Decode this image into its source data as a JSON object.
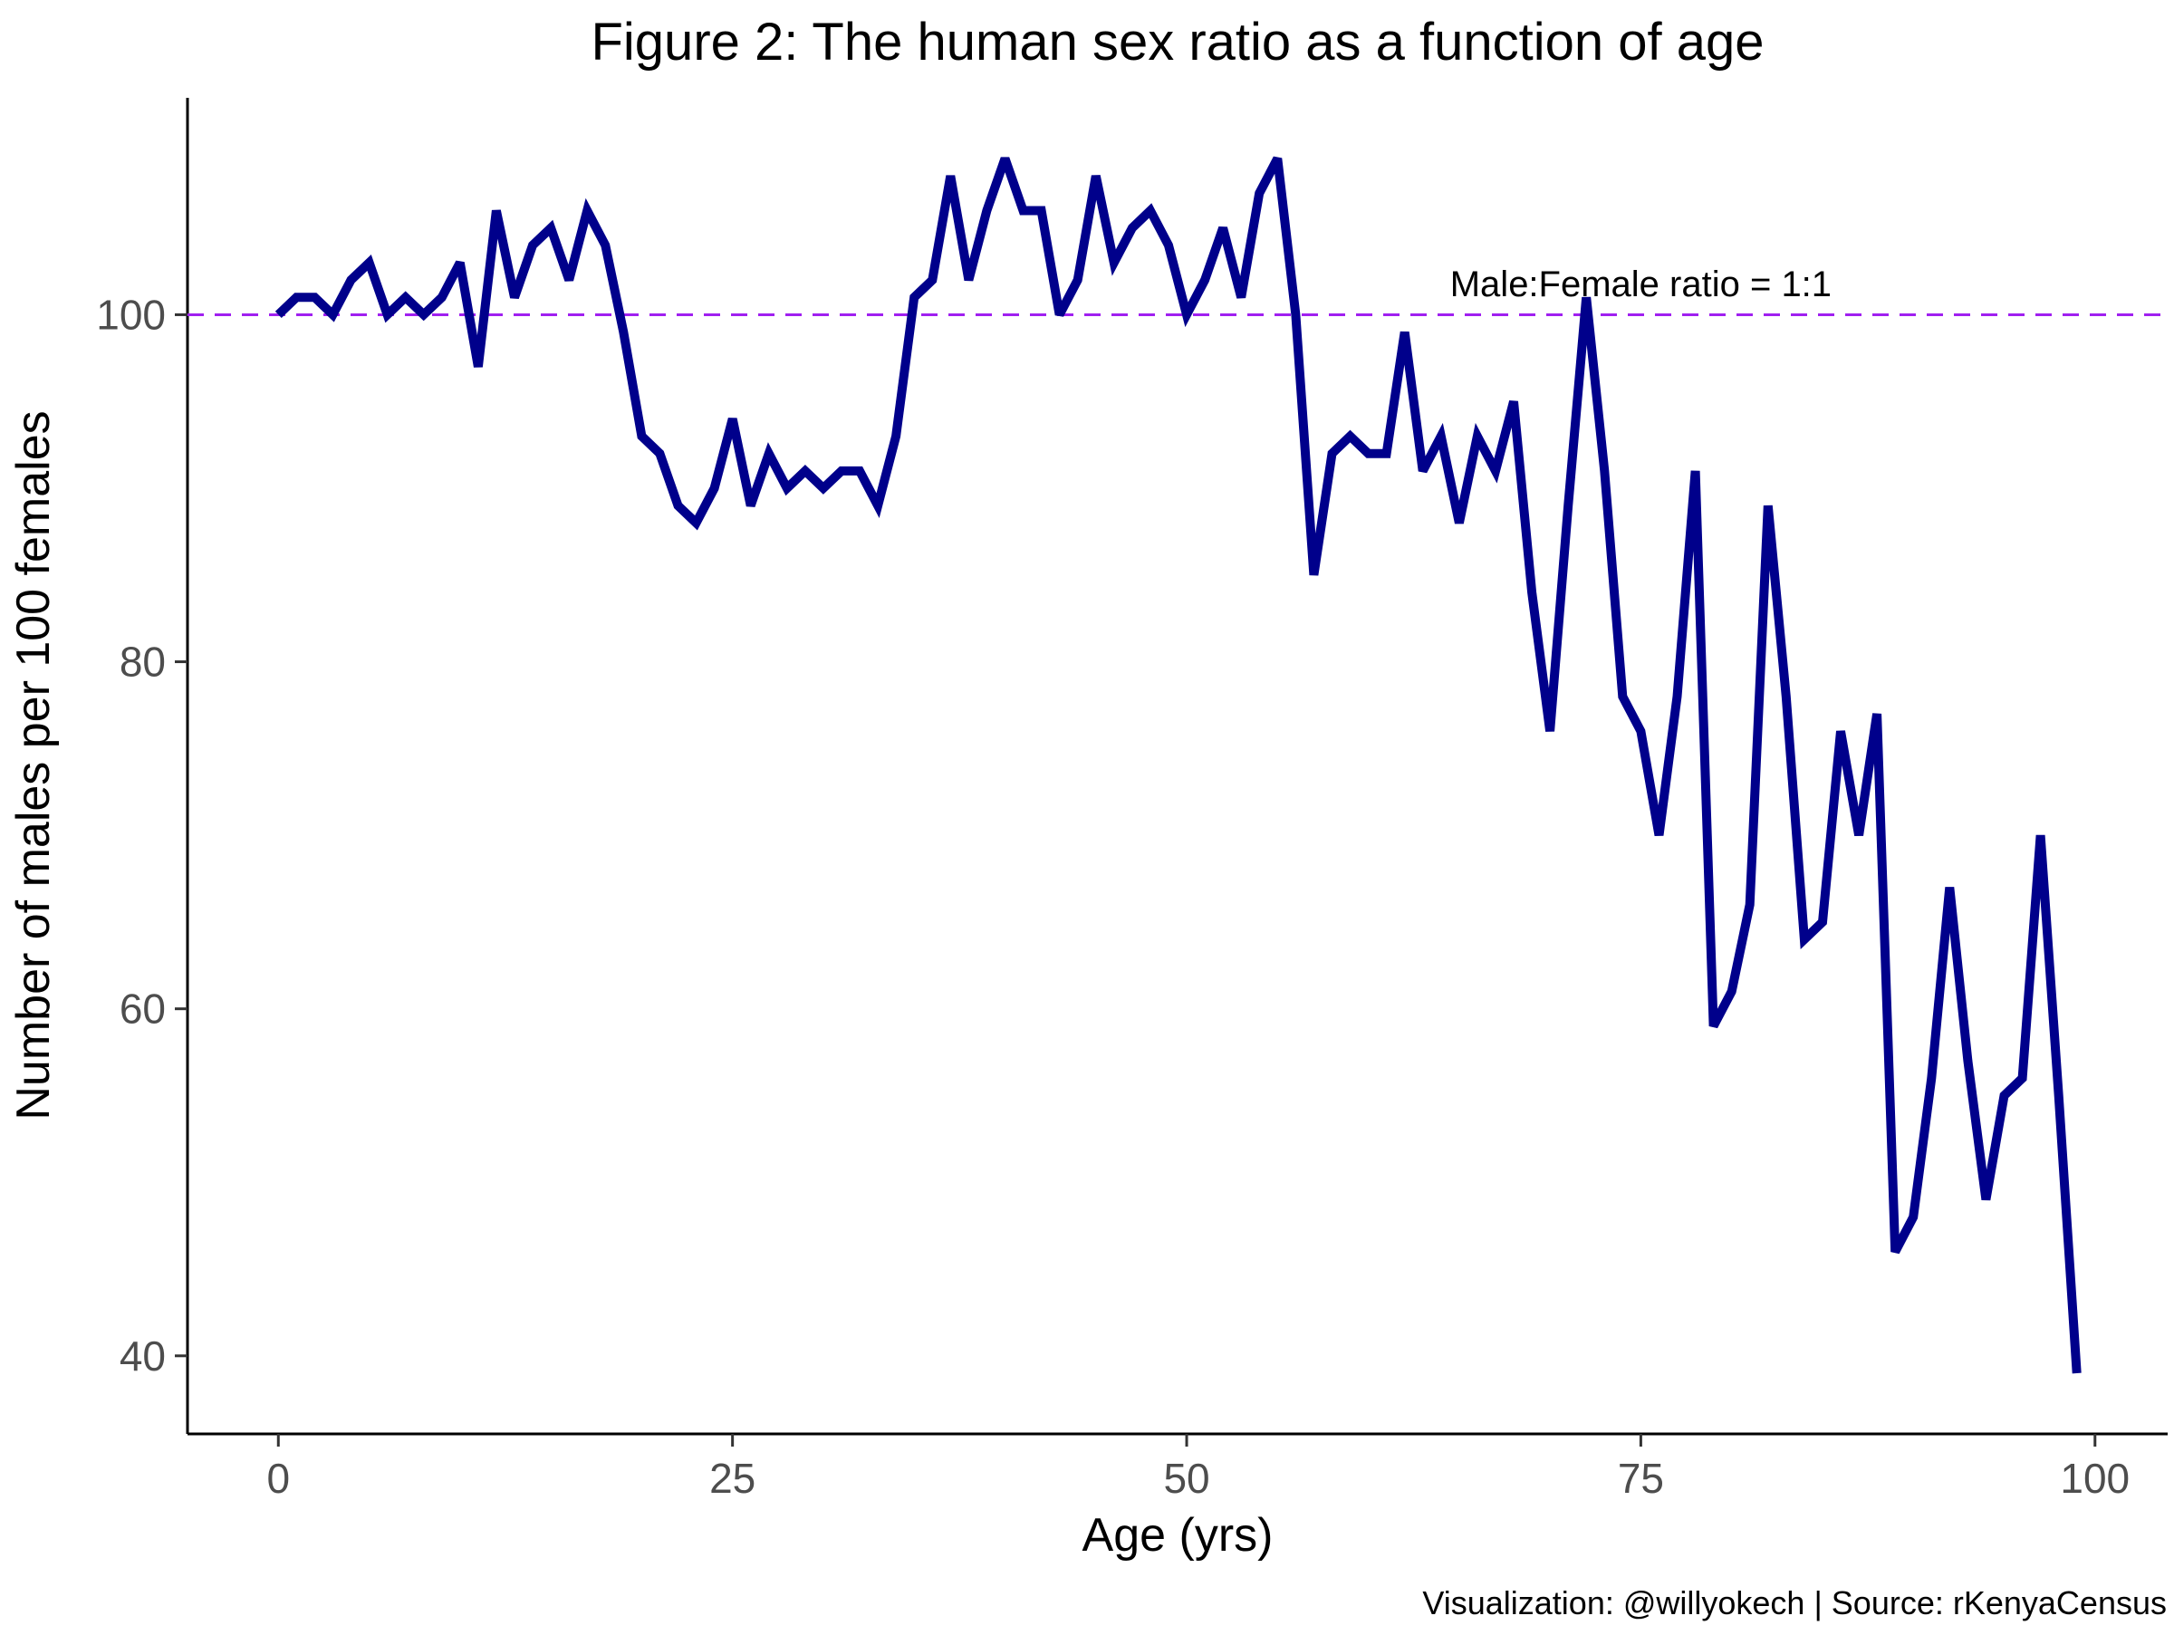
{
  "chart_data": {
    "type": "line",
    "title": "Figure 2: The human sex ratio as a function of age",
    "xlabel": "Age (yrs)",
    "ylabel": "Number of males per 100 females",
    "caption": "Visualization: @willyokech | Source: rKenyaCensus",
    "xlim": [
      -5,
      104
    ],
    "ylim": [
      35.5,
      112.5
    ],
    "x_ticks": [
      0,
      25,
      50,
      75,
      100
    ],
    "x_tick_labels": [
      "0",
      "25",
      "50",
      "75",
      "100"
    ],
    "y_ticks": [
      40,
      60,
      80,
      100
    ],
    "y_tick_labels": [
      "40",
      "60",
      "80",
      "100"
    ],
    "grid": false,
    "reference_line": {
      "y": 100,
      "label": "Male:Female ratio = 1:1",
      "label_x": 75,
      "label_y": 101.8,
      "style": "dashed",
      "color": "#a020f0"
    },
    "series": [
      {
        "color": "#00008b",
        "x": [
          0,
          1,
          2,
          3,
          4,
          5,
          6,
          7,
          8,
          9,
          10,
          11,
          12,
          13,
          14,
          15,
          16,
          17,
          18,
          19,
          20,
          21,
          22,
          23,
          24,
          25,
          26,
          27,
          28,
          29,
          30,
          31,
          32,
          33,
          34,
          35,
          36,
          37,
          38,
          39,
          40,
          41,
          42,
          43,
          44,
          45,
          46,
          47,
          48,
          49,
          50,
          51,
          52,
          53,
          54,
          55,
          56,
          57,
          58,
          59,
          60,
          61,
          62,
          63,
          64,
          65,
          66,
          67,
          68,
          69,
          70,
          71,
          72,
          73,
          74,
          75,
          76,
          77,
          78,
          79,
          80,
          81,
          82,
          83,
          84,
          85,
          86,
          87,
          88,
          89,
          90,
          91,
          92,
          93,
          94,
          95,
          96,
          97,
          98,
          99
        ],
        "values": [
          100,
          101,
          101,
          100,
          102,
          103,
          100,
          101,
          100,
          101,
          103,
          97,
          106,
          101,
          104,
          105,
          102,
          106,
          104,
          99,
          93,
          92,
          89,
          88,
          90,
          94,
          89,
          92,
          90,
          91,
          90,
          91,
          91,
          89,
          93,
          101,
          102,
          108,
          102,
          106,
          109,
          106,
          106,
          100,
          102,
          108,
          103,
          105,
          106,
          104,
          100,
          102,
          105,
          101,
          107,
          109,
          100,
          85,
          92,
          93,
          92,
          92,
          99,
          91,
          93,
          88,
          93,
          91,
          95,
          84,
          76,
          89,
          101,
          91,
          78,
          76,
          70,
          78,
          91,
          59,
          61,
          66,
          89,
          78,
          64,
          65,
          76,
          70,
          77,
          46,
          48,
          56,
          67,
          57,
          49,
          55,
          56,
          70,
          55,
          39
        ]
      }
    ]
  }
}
